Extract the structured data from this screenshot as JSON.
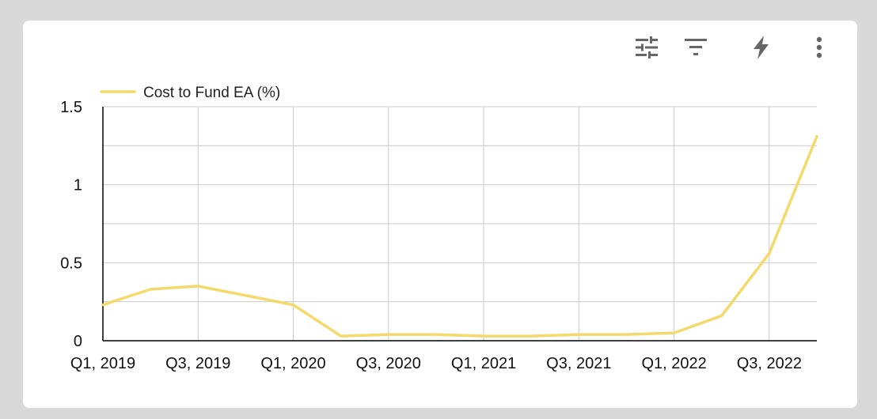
{
  "toolbar": {
    "icons": [
      "tune-icon",
      "filter-icon",
      "bolt-icon",
      "more-vert-icon"
    ]
  },
  "colors": {
    "line": "#F4D96B",
    "grid": "#cccccc",
    "axis": "#000000",
    "icon": "#666666"
  },
  "chart_data": {
    "type": "line",
    "title": "",
    "xlabel": "",
    "ylabel": "",
    "legend_position": "top-left",
    "grid": true,
    "ylim": [
      0,
      1.5
    ],
    "y_ticks": [
      0,
      0.5,
      1,
      1.5
    ],
    "y_tick_labels": [
      "0",
      "0.5",
      "1",
      "1.5"
    ],
    "x": [
      "Q1, 2019",
      "Q2, 2019",
      "Q3, 2019",
      "Q4, 2019",
      "Q1, 2020",
      "Q2, 2020",
      "Q3, 2020",
      "Q4, 2020",
      "Q1, 2021",
      "Q2, 2021",
      "Q3, 2021",
      "Q4, 2021",
      "Q1, 2022",
      "Q2, 2022",
      "Q3, 2022",
      "Q4, 2022"
    ],
    "x_tick_labels": [
      "Q1, 2019",
      "Q3, 2019",
      "Q1, 2020",
      "Q3, 2020",
      "Q1, 2021",
      "Q3, 2021",
      "Q1, 2022",
      "Q3, 2022"
    ],
    "series": [
      {
        "name": "Cost to Fund EA (%)",
        "values": [
          0.23,
          0.33,
          0.35,
          0.29,
          0.23,
          0.03,
          0.04,
          0.04,
          0.03,
          0.03,
          0.04,
          0.04,
          0.05,
          0.16,
          0.56,
          1.31
        ]
      }
    ]
  }
}
